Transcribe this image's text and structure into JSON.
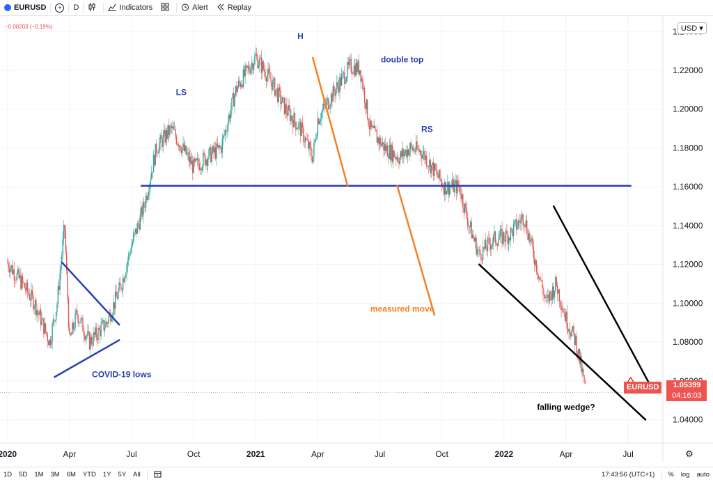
{
  "toolbar": {
    "symbol": "EURUSD",
    "interval": "D",
    "indicators": "Indicators",
    "alert": "Alert",
    "replay": "Replay"
  },
  "header": {
    "change": "−0.00203 (−0.19%)",
    "currency": "USD"
  },
  "price_label": {
    "symbol": "EURUSD",
    "price": "1.05399",
    "countdown": "04:16:03"
  },
  "bottombar": {
    "ranges": [
      "1D",
      "5D",
      "1M",
      "3M",
      "6M",
      "YTD",
      "1Y",
      "5Y",
      "All"
    ],
    "time": "17:43:56 (UTC+1)",
    "percent": "%",
    "log": "log",
    "auto": "auto"
  },
  "colors": {
    "up": "#26a69a",
    "down": "#ef5350",
    "blue_line": "#2b3fae",
    "orange_line": "#f57f20",
    "black_line": "#000000",
    "annotation_blue": "#2b3fae",
    "annotation_orange": "#f57f20"
  },
  "chart_data": {
    "type": "candlestick",
    "x_ticks": [
      "2020",
      "Apr",
      "Jul",
      "Oct",
      "2021",
      "Apr",
      "Jul",
      "Oct",
      "2022",
      "Apr",
      "Jul"
    ],
    "y_ticks": [
      "1.24000",
      "1.22000",
      "1.20000",
      "1.18000",
      "1.16000",
      "1.14000",
      "1.12000",
      "1.10000",
      "1.08000",
      "1.06000",
      "1.04000"
    ],
    "ylim": [
      1.028,
      1.248
    ],
    "xlim": [
      2019.97,
      2022.64
    ],
    "last_price": 1.05399,
    "annotations": [
      {
        "text": "H",
        "color": "blue",
        "x": 2021.18,
        "y": 1.2362
      },
      {
        "text": "LS",
        "color": "blue",
        "x": 2020.7,
        "y": 1.2072
      },
      {
        "text": "RS",
        "color": "blue",
        "x": 2021.69,
        "y": 1.1882
      },
      {
        "text": "double top",
        "color": "blue",
        "x": 2021.59,
        "y": 1.2242
      },
      {
        "text": "COVID-19 lows",
        "color": "blue",
        "x": 2020.46,
        "y": 1.062
      },
      {
        "text": "measured move",
        "color": "orange",
        "x": 2021.59,
        "y": 1.0956
      },
      {
        "text": "falling wedge?",
        "color": "black",
        "x": 2022.25,
        "y": 1.0451
      }
    ],
    "lines": [
      {
        "name": "neckline",
        "color": "blue",
        "points": [
          [
            2020.54,
            1.1605
          ],
          [
            2022.51,
            1.1605
          ]
        ]
      },
      {
        "name": "covid-upper",
        "color": "blue",
        "points": [
          [
            2020.22,
            1.121
          ],
          [
            2020.45,
            1.089
          ]
        ]
      },
      {
        "name": "covid-lower",
        "color": "blue",
        "points": [
          [
            2020.19,
            1.062
          ],
          [
            2020.45,
            1.081
          ]
        ]
      },
      {
        "name": "h-projection",
        "color": "orange",
        "points": [
          [
            2021.23,
            1.2265
          ],
          [
            2021.37,
            1.1605
          ]
        ]
      },
      {
        "name": "measured-move",
        "color": "orange",
        "points": [
          [
            2021.57,
            1.1605
          ],
          [
            2021.72,
            1.094
          ]
        ]
      },
      {
        "name": "wedge-upper",
        "color": "black",
        "points": [
          [
            2022.2,
            1.15
          ],
          [
            2022.59,
            1.0575
          ]
        ]
      },
      {
        "name": "wedge-lower",
        "color": "black",
        "points": [
          [
            2021.9,
            1.12
          ],
          [
            2022.57,
            1.04
          ]
        ]
      }
    ],
    "close_path": [
      [
        2020.0,
        1.121
      ],
      [
        2020.05,
        1.112
      ],
      [
        2020.11,
        1.1
      ],
      [
        2020.17,
        1.08
      ],
      [
        2020.2,
        1.1
      ],
      [
        2020.23,
        1.14
      ],
      [
        2020.25,
        1.08
      ],
      [
        2020.28,
        1.095
      ],
      [
        2020.33,
        1.08
      ],
      [
        2020.4,
        1.09
      ],
      [
        2020.46,
        1.11
      ],
      [
        2020.5,
        1.13
      ],
      [
        2020.55,
        1.15
      ],
      [
        2020.6,
        1.18
      ],
      [
        2020.66,
        1.19
      ],
      [
        2020.7,
        1.181
      ],
      [
        2020.75,
        1.17
      ],
      [
        2020.8,
        1.175
      ],
      [
        2020.86,
        1.18
      ],
      [
        2020.92,
        1.21
      ],
      [
        2021.0,
        1.227
      ],
      [
        2021.06,
        1.215
      ],
      [
        2021.12,
        1.2
      ],
      [
        2021.18,
        1.19
      ],
      [
        2021.23,
        1.175
      ],
      [
        2021.25,
        1.195
      ],
      [
        2021.33,
        1.212
      ],
      [
        2021.38,
        1.222
      ],
      [
        2021.42,
        1.221
      ],
      [
        2021.46,
        1.19
      ],
      [
        2021.52,
        1.18
      ],
      [
        2021.58,
        1.175
      ],
      [
        2021.62,
        1.18
      ],
      [
        2021.67,
        1.178
      ],
      [
        2021.71,
        1.17
      ],
      [
        2021.76,
        1.16
      ],
      [
        2021.82,
        1.16
      ],
      [
        2021.86,
        1.14
      ],
      [
        2021.9,
        1.125
      ],
      [
        2021.96,
        1.133
      ],
      [
        2022.02,
        1.135
      ],
      [
        2022.08,
        1.145
      ],
      [
        2022.12,
        1.125
      ],
      [
        2022.17,
        1.1
      ],
      [
        2022.21,
        1.11
      ],
      [
        2022.25,
        1.092
      ],
      [
        2022.29,
        1.08
      ],
      [
        2022.33,
        1.054
      ]
    ]
  }
}
